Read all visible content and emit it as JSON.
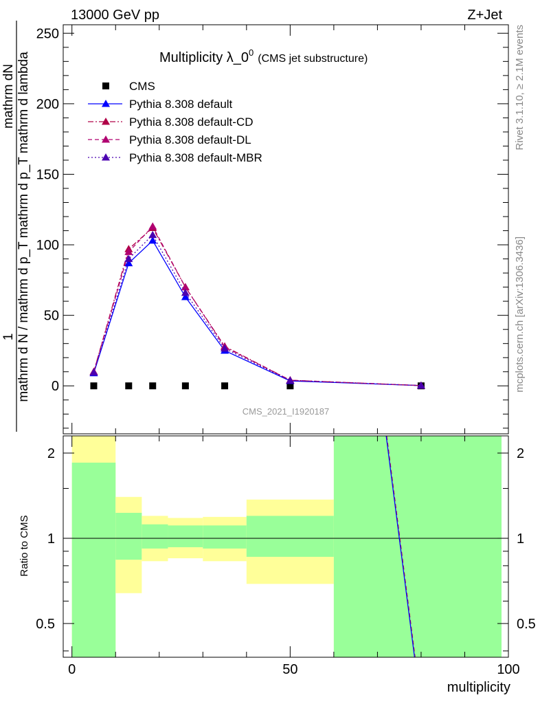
{
  "header": {
    "left": "13000 GeV pp",
    "right": "Z+Jet"
  },
  "side_texts": {
    "rivet": "Rivet 3.1.10, ≥ 2.1M events",
    "mcplots": "mcplots.cern.ch [arXiv:1306.3436]"
  },
  "watermark": "CMS_2021_I1920187",
  "chart_data": [
    {
      "type": "line",
      "title_main": "Multiplicity λ_0",
      "title_sup": "0",
      "title_sub": "(CMS jet substructure)",
      "ylabel_numerator": "1",
      "ylabel_denominator": "mathrm d N / mathrm d p_T mathrm d p_T mathrm d lambda",
      "ylabel_top": "mathrm dN",
      "xlim": [
        -2,
        100
      ],
      "ylim": [
        -34,
        256
      ],
      "yticks": [
        0,
        50,
        100,
        150,
        200,
        250
      ],
      "ytick_labels": [
        "0",
        "50",
        "100",
        "150",
        "200",
        "250"
      ],
      "x": [
        5,
        13,
        18.5,
        26,
        35,
        50,
        80
      ],
      "series": [
        {
          "name": "CMS",
          "style": "data",
          "color": "#000000",
          "values": [
            0,
            0,
            0,
            0,
            0,
            0,
            0
          ]
        },
        {
          "name": "Pythia 8.308 default",
          "style": "solid",
          "color": "#0000ff",
          "values": [
            9,
            87,
            103,
            63,
            25,
            3.5,
            0.2
          ]
        },
        {
          "name": "Pythia 8.308 default-CD",
          "style": "dashdot",
          "color": "#b00047",
          "values": [
            10,
            97,
            112,
            70,
            28,
            4,
            0.2
          ]
        },
        {
          "name": "Pythia 8.308 default-DL",
          "style": "dashed",
          "color": "#b00070",
          "values": [
            10,
            95,
            113,
            70,
            27.5,
            4,
            0.2
          ]
        },
        {
          "name": "Pythia 8.308 default-MBR",
          "style": "dotted",
          "color": "#4b00b0",
          "values": [
            9.5,
            90,
            107,
            66,
            26.5,
            3.8,
            0.2
          ]
        }
      ]
    },
    {
      "type": "area",
      "ylabel": "Ratio to CMS",
      "xlabel": "multiplicity",
      "log_y": true,
      "xlim": [
        -2,
        100
      ],
      "ylim": [
        0.38,
        2.3
      ],
      "xticks": [
        0,
        50,
        100
      ],
      "xtick_labels": [
        "0",
        "50",
        "100"
      ],
      "yticks": [
        0.5,
        1,
        2
      ],
      "ytick_labels": [
        "0.5",
        "1",
        "2"
      ],
      "bands": [
        {
          "x0": 0,
          "x1": 10,
          "green_lo": 0.3,
          "green_hi": 1.85,
          "yellow_lo": 0.3,
          "yellow_hi": 2.4
        },
        {
          "x0": 10,
          "x1": 16,
          "green_lo": 0.84,
          "green_hi": 1.23,
          "yellow_lo": 0.64,
          "yellow_hi": 1.4
        },
        {
          "x0": 16,
          "x1": 22,
          "green_lo": 0.92,
          "green_hi": 1.12,
          "yellow_lo": 0.83,
          "yellow_hi": 1.2
        },
        {
          "x0": 22,
          "x1": 30,
          "green_lo": 0.93,
          "green_hi": 1.11,
          "yellow_lo": 0.85,
          "yellow_hi": 1.18
        },
        {
          "x0": 30,
          "x1": 40,
          "green_lo": 0.92,
          "green_hi": 1.11,
          "yellow_lo": 0.83,
          "yellow_hi": 1.19
        },
        {
          "x0": 40,
          "x1": 60,
          "green_lo": 0.86,
          "green_hi": 1.2,
          "yellow_lo": 0.69,
          "yellow_hi": 1.37
        },
        {
          "x0": 60,
          "x1": 100,
          "green_lo": 0.3,
          "green_hi": 2.4,
          "yellow_lo": 0.3,
          "yellow_hi": 2.4
        }
      ],
      "reference_line": 1,
      "mc_ratio_line": {
        "x": [
          72,
          78.5
        ],
        "y": [
          2.3,
          0.38
        ],
        "color": "#0000ff"
      }
    }
  ],
  "colors": {
    "band_green": "#99ff99",
    "band_yellow": "#ffff99",
    "axis": "#000000"
  }
}
